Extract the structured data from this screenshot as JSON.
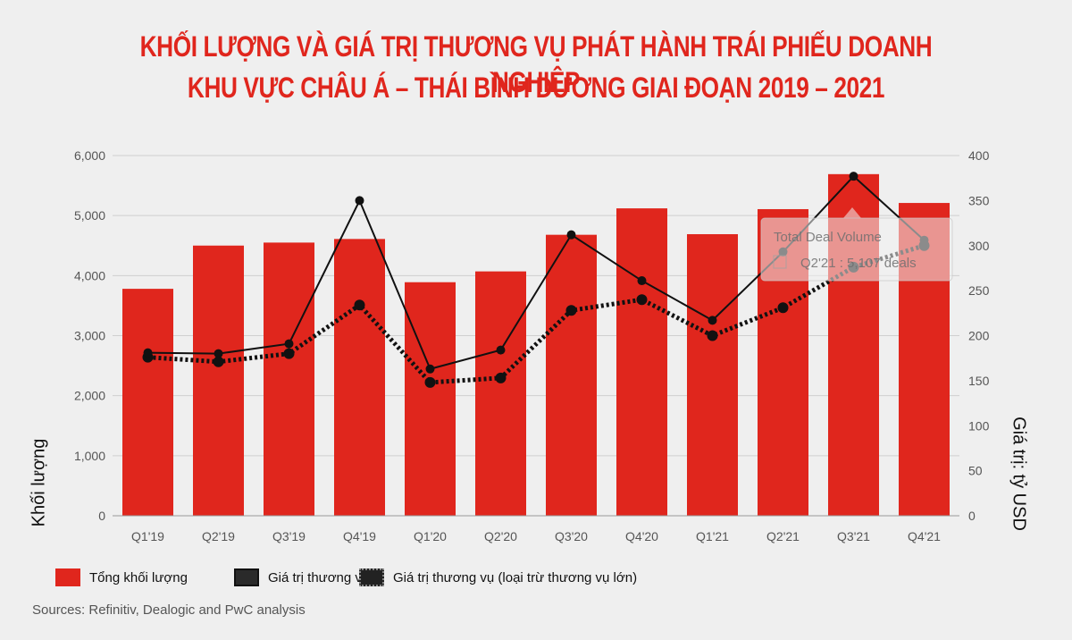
{
  "title": {
    "line1": "KHỐI LƯỢNG VÀ GIÁ TRỊ THƯƠNG VỤ PHÁT HÀNH TRÁI PHIẾU DOANH NGHIỆP",
    "line2": "KHU VỰC CHÂU Á – THÁI BÌNH DƯƠNG GIAI ĐOẠN 2019 – 2021"
  },
  "legend": {
    "bar": "Tổng khối lượng",
    "line_solid": "Giá trị thương vụ",
    "line_dotted": "Giá trị thương vụ (loại trừ thương vụ lớn)"
  },
  "source": "Sources: Refinitiv, Dealogic and PwC analysis",
  "tooltip": {
    "title": "Total Deal Volume",
    "text": "Q2'21 : 5,107 deals"
  },
  "colors": {
    "bar": "#e0261d",
    "line": "#111111",
    "background": "#efefef"
  },
  "chart_data": {
    "type": "bar",
    "categories": [
      "Q1'19",
      "Q2'19",
      "Q3'19",
      "Q4'19",
      "Q1'20",
      "Q2'20",
      "Q3'20",
      "Q4'20",
      "Q1'21",
      "Q2'21",
      "Q3'21",
      "Q4'21"
    ],
    "ylabel": "Khối lượng",
    "y2label": "Giá trị: tỷ USD",
    "ylim": [
      0,
      6000
    ],
    "y2lim": [
      0,
      400
    ],
    "yticks": [
      "0",
      "1,000",
      "2,000",
      "3,000",
      "4,000",
      "5,000",
      "6,000"
    ],
    "y2ticks": [
      "0",
      "50",
      "100",
      "150",
      "200",
      "250",
      "300",
      "350",
      "400"
    ],
    "grid": "horizontal",
    "legend_position": "bottom",
    "series": [
      {
        "name": "Tổng khối lượng",
        "kind": "bar",
        "axis": "left",
        "values": [
          3780,
          4500,
          4550,
          4610,
          3890,
          4070,
          4680,
          5120,
          4690,
          5107,
          5690,
          5210
        ]
      },
      {
        "name": "Giá trị thương vụ",
        "kind": "line",
        "axis": "right",
        "values": [
          181,
          180,
          191,
          350,
          163,
          184,
          312,
          261,
          217,
          293,
          377,
          306
        ]
      },
      {
        "name": "Giá trị thương vụ (loại trừ thương vụ lớn)",
        "kind": "dotted-line",
        "axis": "right",
        "values": [
          176,
          171,
          180,
          234,
          148,
          153,
          228,
          240,
          200,
          231,
          276,
          300
        ]
      }
    ]
  }
}
